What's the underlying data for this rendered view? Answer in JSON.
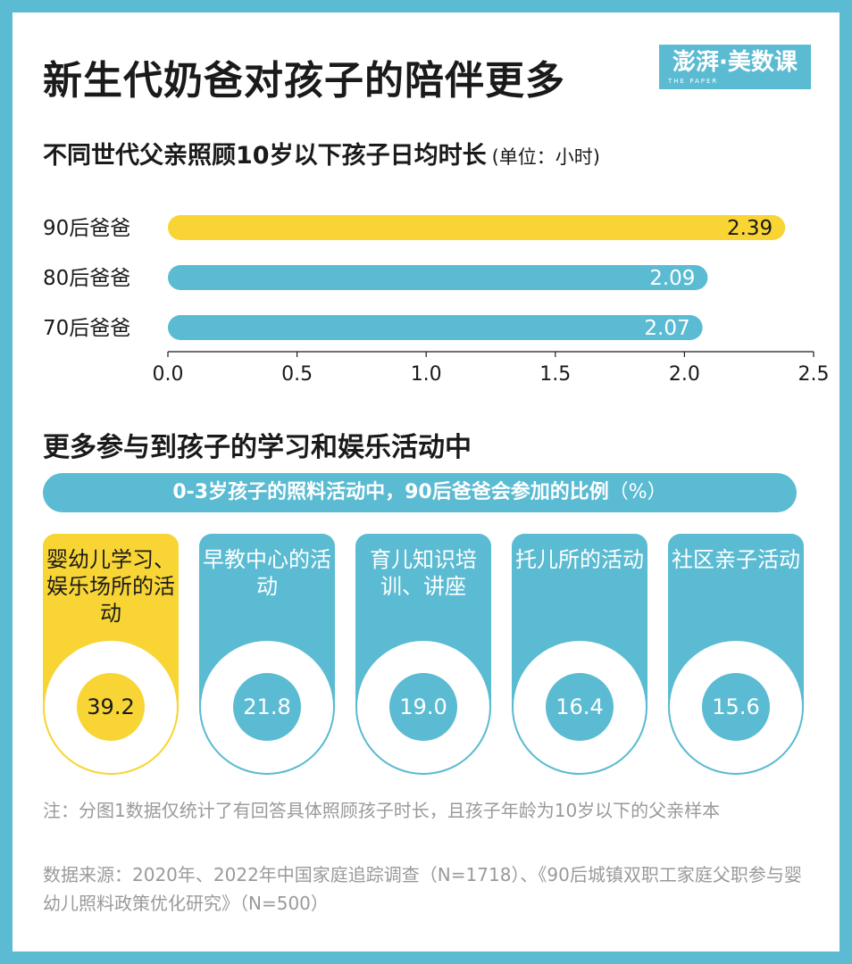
{
  "title": "新生代奶爸对孩子的陪伴更多",
  "logo": {
    "main": "澎湃·美数课",
    "sub": "THE PAPER"
  },
  "subtitle": "不同世代父亲照顾10岁以下孩子日均时长",
  "unit": "(单位：小时)",
  "chart_data": {
    "type": "bar",
    "orientation": "horizontal",
    "categories": [
      "90后爸爸",
      "80后爸爸",
      "70后爸爸"
    ],
    "values": [
      2.39,
      2.09,
      2.07
    ],
    "value_labels": [
      "2.39",
      "2.09",
      "2.07"
    ],
    "colors": [
      "#f8d534",
      "#5bbbd2",
      "#5bbbd2"
    ],
    "xlim": [
      0,
      2.5
    ],
    "ticks": [
      "0.0",
      "0.5",
      "1.0",
      "1.5",
      "2.0",
      "2.5"
    ],
    "grid": false
  },
  "section2": "更多参与到孩子的学习和娱乐活动中",
  "banner": {
    "text": "0-3岁孩子的照料活动中，90后爸爸会参加的比例",
    "unit": "（%）"
  },
  "activities": [
    {
      "label": "婴幼儿学习、娱乐场所的活动",
      "value": "39.2",
      "highlight": true
    },
    {
      "label": "早教中心的活动",
      "value": "21.8",
      "highlight": false
    },
    {
      "label": "育儿知识培训、讲座",
      "value": "19.0",
      "highlight": false
    },
    {
      "label": "托儿所的活动",
      "value": "16.4",
      "highlight": false
    },
    {
      "label": "社区亲子活动",
      "value": "15.6",
      "highlight": false
    }
  ],
  "activity_chart_data": {
    "type": "bar",
    "categories": [
      "婴幼儿学习、娱乐场所的活动",
      "早教中心的活动",
      "育儿知识培训、讲座",
      "托儿所的活动",
      "社区亲子活动"
    ],
    "values": [
      39.2,
      21.8,
      19.0,
      16.4,
      15.6
    ]
  },
  "colors": {
    "accent_blue": "#5bbbd2",
    "accent_yellow": "#f8d534",
    "text_dark": "#1a1a1a",
    "note_gray": "#9a9a9a"
  },
  "note": "注：分图1数据仅统计了有回答具体照顾孩子时长，且孩子年龄为10岁以下的父亲样本",
  "source": "数据来源：2020年、2022年中国家庭追踪调查（N=1718）、《90后城镇双职工家庭父职参与婴幼儿照料政策优化研究》（N=500）"
}
